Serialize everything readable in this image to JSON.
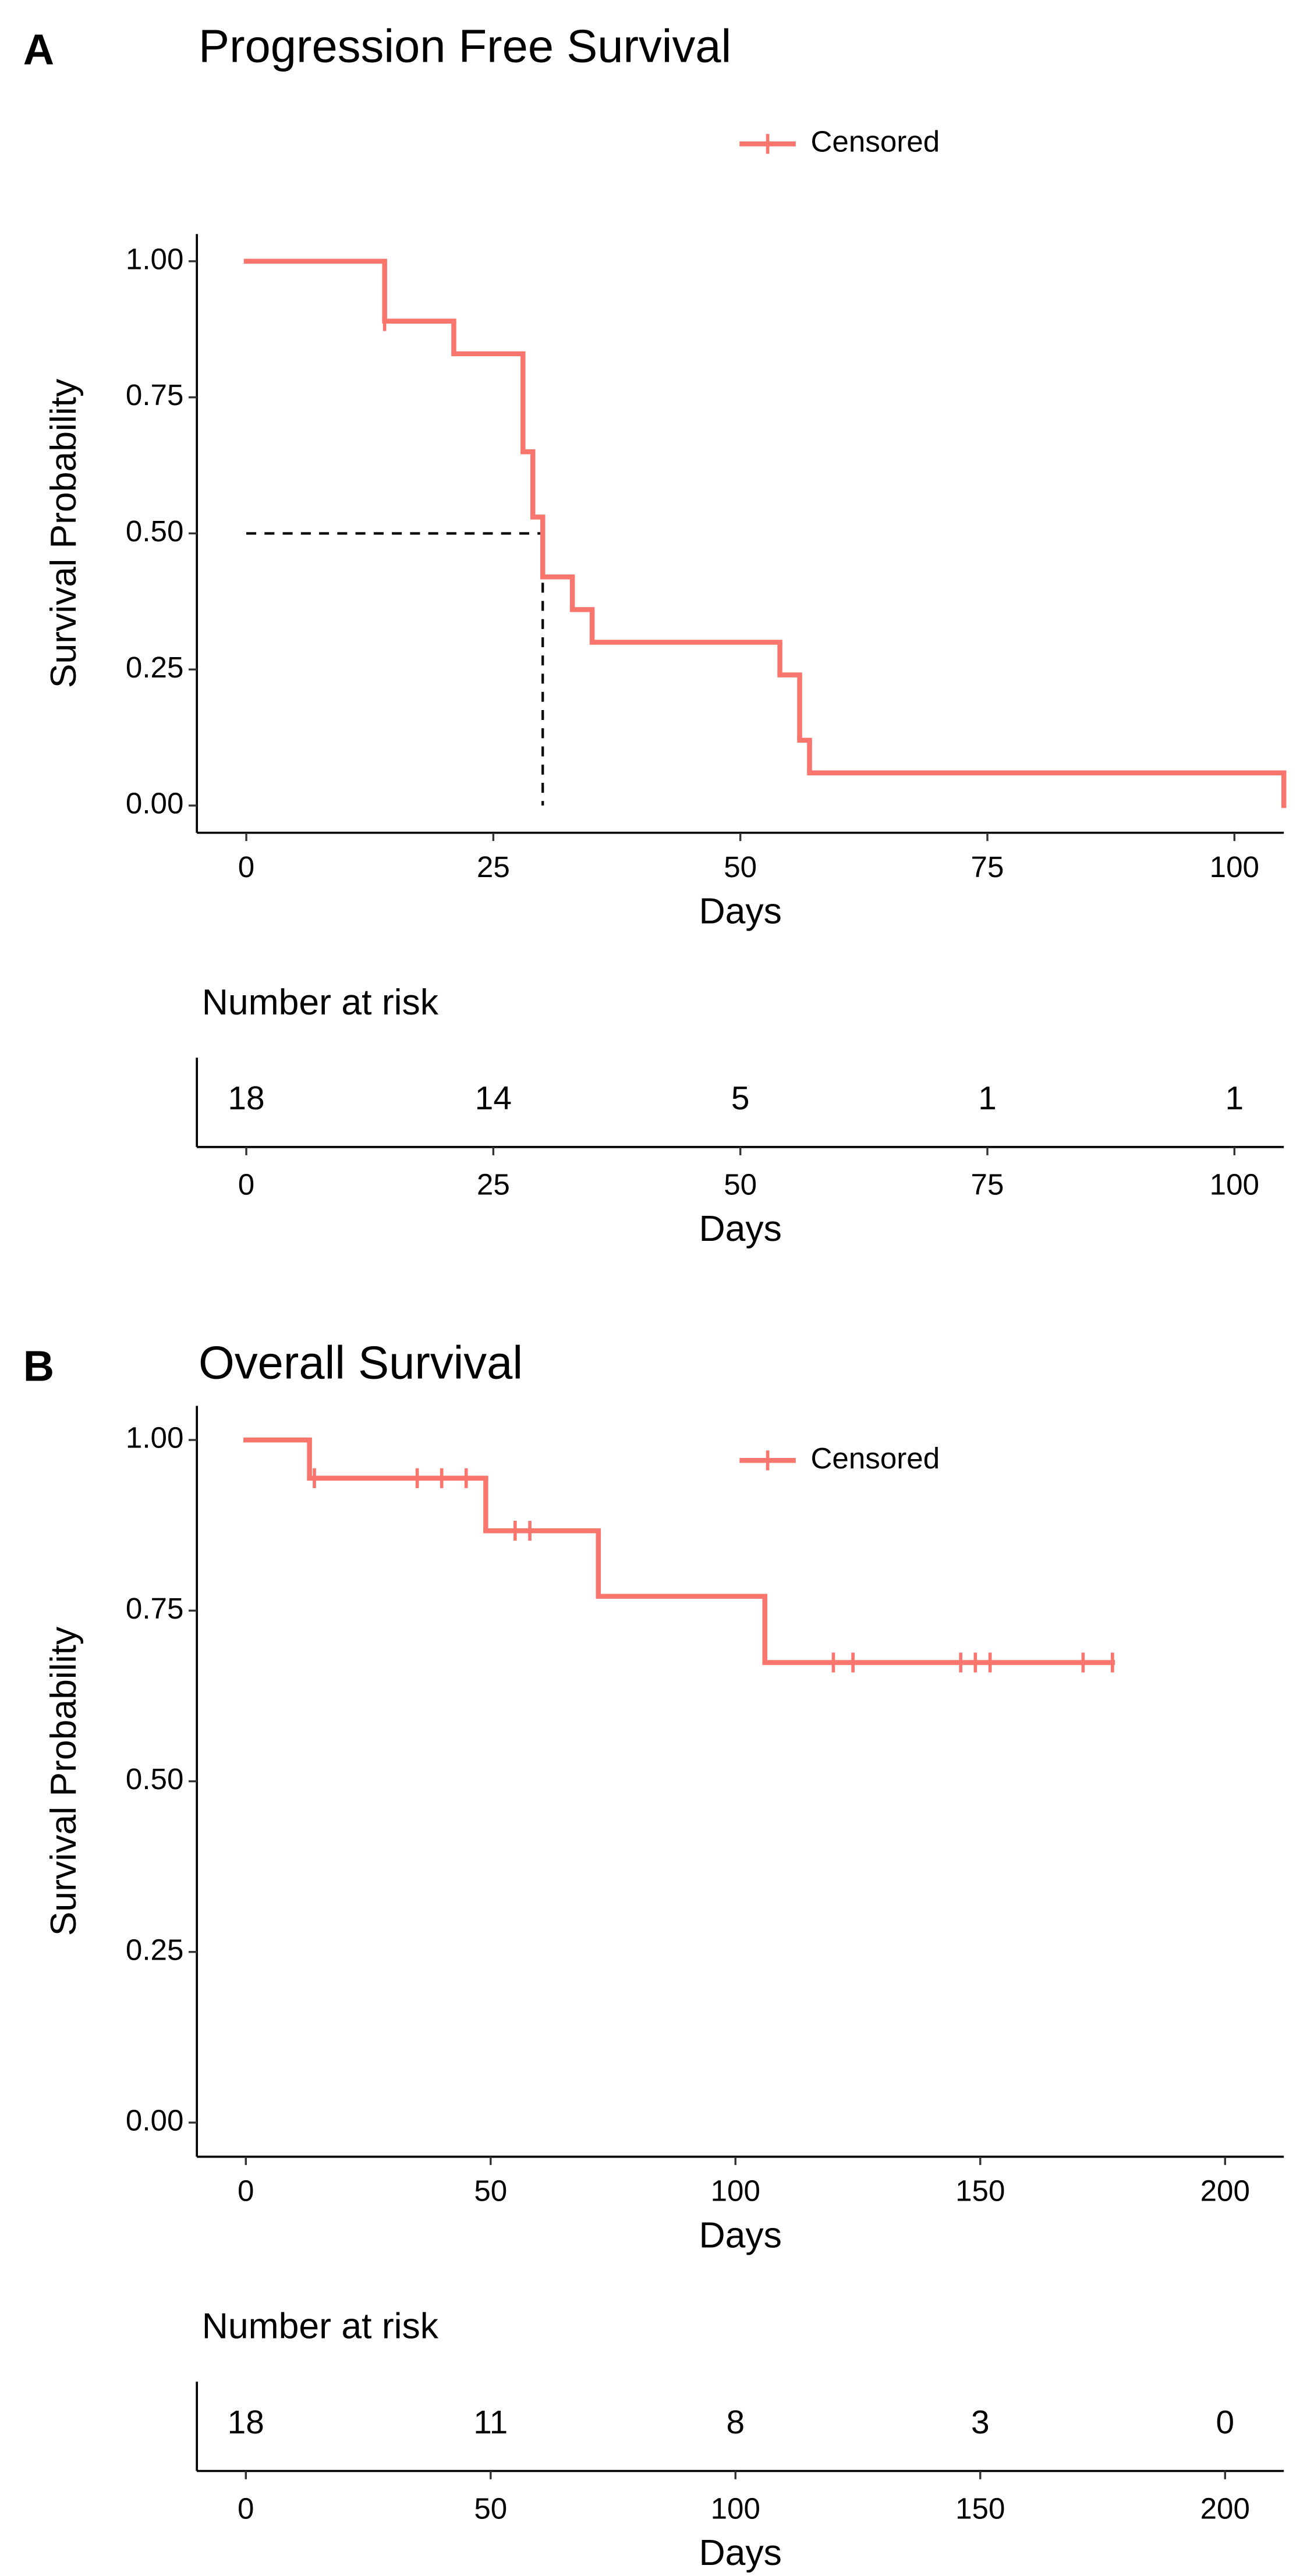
{
  "chart_data": [
    {
      "type": "km",
      "panel": "A",
      "title": "Progression Free Survival",
      "legend": "Censored",
      "color": "#f8766d",
      "xlabel": "Days",
      "ylabel": "Survival Probability",
      "x": [
        0,
        14,
        21,
        28,
        29,
        30,
        33,
        35,
        54,
        56,
        57,
        105
      ],
      "values": [
        1.0,
        0.89,
        0.83,
        0.65,
        0.53,
        0.42,
        0.36,
        0.3,
        0.24,
        0.12,
        0.06,
        0.0
      ],
      "censored": {
        "x": [
          14
        ],
        "y": [
          0.89
        ]
      },
      "median_line": {
        "x": 30,
        "y": 0.5
      },
      "xlim": [
        -5,
        105
      ],
      "ylim": [
        -0.05,
        1.05
      ],
      "xticks": [
        0,
        25,
        50,
        75,
        100
      ],
      "yticks": [
        {
          "value": 0,
          "label": "0.00"
        },
        {
          "value": 0.25,
          "label": "0.25"
        },
        {
          "value": 0.5,
          "label": "0.50"
        },
        {
          "value": 0.75,
          "label": "0.75"
        },
        {
          "value": 1,
          "label": "1.00"
        }
      ],
      "risk_table": {
        "title": "Number at risk",
        "times": [
          0,
          25,
          50,
          75,
          100
        ],
        "counts": [
          18,
          14,
          5,
          1,
          1
        ],
        "xlabel": "Days"
      }
    },
    {
      "type": "km",
      "panel": "B",
      "title": "Overall Survival",
      "legend": "Censored",
      "color": "#f8766d",
      "xlabel": "Days",
      "ylabel": "Survival Probability",
      "x": [
        0,
        13,
        49,
        72,
        106
      ],
      "values": [
        1.0,
        0.944,
        0.867,
        0.771,
        0.674
      ],
      "censored": {
        "x": [
          14,
          35,
          40,
          45,
          55,
          58,
          120,
          124,
          146,
          149,
          152,
          171,
          177
        ],
        "y": [
          0.944,
          0.944,
          0.944,
          0.944,
          0.867,
          0.867,
          0.674,
          0.674,
          0.674,
          0.674,
          0.674,
          0.674,
          0.674
        ]
      },
      "xlim": [
        -10,
        212
      ],
      "ylim": [
        -0.05,
        1.05
      ],
      "xticks": [
        0,
        50,
        100,
        150,
        200
      ],
      "yticks": [
        {
          "value": 0,
          "label": "0.00"
        },
        {
          "value": 0.25,
          "label": "0.25"
        },
        {
          "value": 0.5,
          "label": "0.50"
        },
        {
          "value": 0.75,
          "label": "0.75"
        },
        {
          "value": 1,
          "label": "1.00"
        }
      ],
      "risk_table": {
        "title": "Number at risk",
        "times": [
          0,
          50,
          100,
          150,
          200
        ],
        "counts": [
          18,
          11,
          8,
          3,
          0
        ],
        "xlabel": "Days"
      }
    }
  ]
}
